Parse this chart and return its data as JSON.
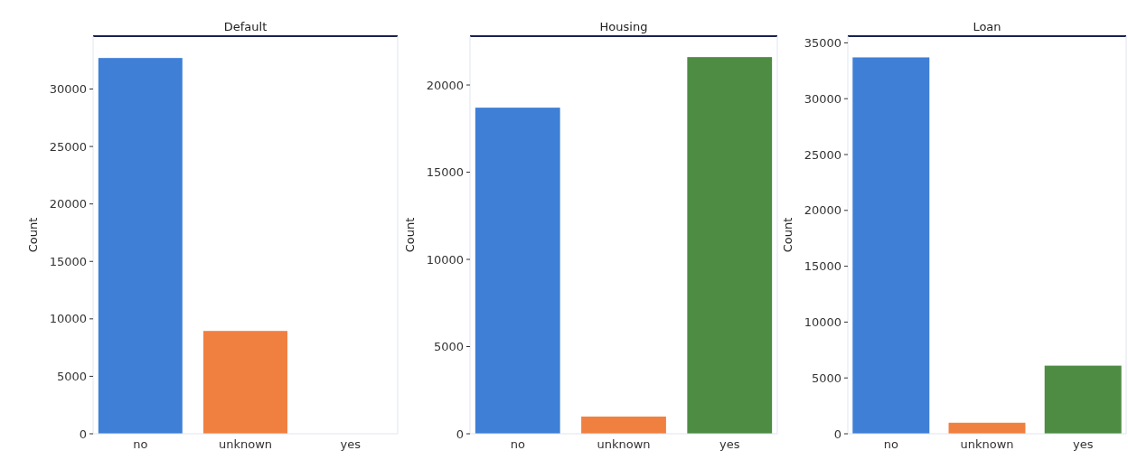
{
  "chart_data": [
    {
      "type": "bar",
      "title": "Default",
      "ylabel": "Count",
      "categories": [
        "no",
        "unknown",
        "yes"
      ],
      "colors": [
        "#3f7fd6",
        "#f08040",
        "#4e8c44"
      ],
      "values": [
        32700,
        8950,
        0
      ],
      "ylim": [
        0,
        34600
      ],
      "yticks": [
        0,
        5000,
        10000,
        15000,
        20000,
        25000,
        30000
      ],
      "grid": false
    },
    {
      "type": "bar",
      "title": "Housing",
      "ylabel": "Count",
      "categories": [
        "no",
        "unknown",
        "yes"
      ],
      "colors": [
        "#3f7fd6",
        "#f08040",
        "#4e8c44"
      ],
      "values": [
        18700,
        990,
        21600
      ],
      "ylim": [
        0,
        22800
      ],
      "yticks": [
        0,
        5000,
        10000,
        15000,
        20000
      ],
      "grid": false
    },
    {
      "type": "bar",
      "title": "Loan",
      "ylabel": "Count",
      "categories": [
        "no",
        "unknown",
        "yes"
      ],
      "colors": [
        "#3f7fd6",
        "#f08040",
        "#4e8c44"
      ],
      "values": [
        33700,
        990,
        6100
      ],
      "ylim": [
        0,
        35600
      ],
      "yticks": [
        0,
        5000,
        10000,
        15000,
        20000,
        25000,
        30000,
        35000
      ],
      "grid": false
    }
  ]
}
